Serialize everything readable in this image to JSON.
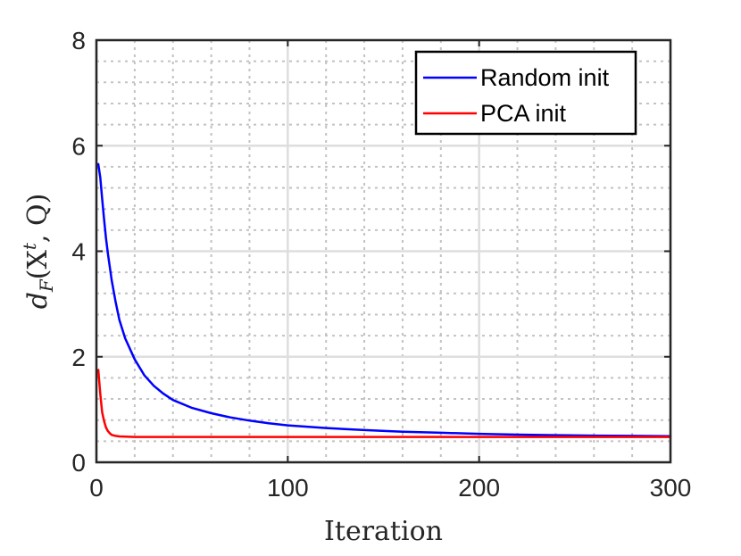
{
  "chart_data": {
    "type": "line",
    "title": "",
    "xlabel": "Iteration",
    "ylabel": "d_F(X^t, Q)",
    "ylabel_parts": {
      "main": "d",
      "sub": "F",
      "open": "(X",
      "sup": "t",
      "rest": ", Q)"
    },
    "xlim": [
      0,
      300
    ],
    "ylim": [
      0,
      8
    ],
    "x_ticks": [
      0,
      100,
      200,
      300
    ],
    "y_ticks": [
      0,
      2,
      4,
      6,
      8
    ],
    "x_tick_labels": [
      "0",
      "100",
      "200",
      "300"
    ],
    "y_tick_labels": [
      "0",
      "2",
      "4",
      "6",
      "8"
    ],
    "x_minor_ticks": [
      20,
      40,
      60,
      80,
      120,
      140,
      160,
      180,
      220,
      240,
      260,
      280
    ],
    "y_minor_ticks": [
      0.4,
      0.8,
      1.2,
      1.6,
      2.4,
      2.8,
      3.2,
      3.6,
      4.4,
      4.8,
      5.2,
      5.6,
      6.4,
      6.8,
      7.2,
      7.6
    ],
    "grid": true,
    "minor_grid": true,
    "legend_position": "top-right",
    "series": [
      {
        "name": "Random init",
        "color": "#0000ff",
        "x": [
          1,
          2,
          3,
          4,
          5,
          6,
          8,
          10,
          12,
          15,
          20,
          25,
          30,
          35,
          40,
          50,
          60,
          70,
          80,
          90,
          100,
          120,
          140,
          160,
          180,
          200,
          220,
          240,
          260,
          280,
          300
        ],
        "y": [
          5.65,
          5.4,
          5.0,
          4.6,
          4.25,
          3.95,
          3.45,
          3.05,
          2.7,
          2.35,
          1.95,
          1.65,
          1.45,
          1.3,
          1.18,
          1.03,
          0.93,
          0.85,
          0.79,
          0.74,
          0.7,
          0.65,
          0.61,
          0.58,
          0.56,
          0.54,
          0.525,
          0.515,
          0.505,
          0.5,
          0.495
        ]
      },
      {
        "name": "PCA init",
        "color": "#ff0000",
        "x": [
          1,
          2,
          3,
          4,
          5,
          6,
          7,
          8,
          10,
          12,
          15,
          20,
          30,
          50,
          100,
          150,
          200,
          250,
          300
        ],
        "y": [
          1.75,
          1.3,
          0.95,
          0.78,
          0.66,
          0.59,
          0.55,
          0.52,
          0.5,
          0.49,
          0.485,
          0.48,
          0.48,
          0.48,
          0.48,
          0.48,
          0.48,
          0.48,
          0.48
        ]
      }
    ]
  }
}
